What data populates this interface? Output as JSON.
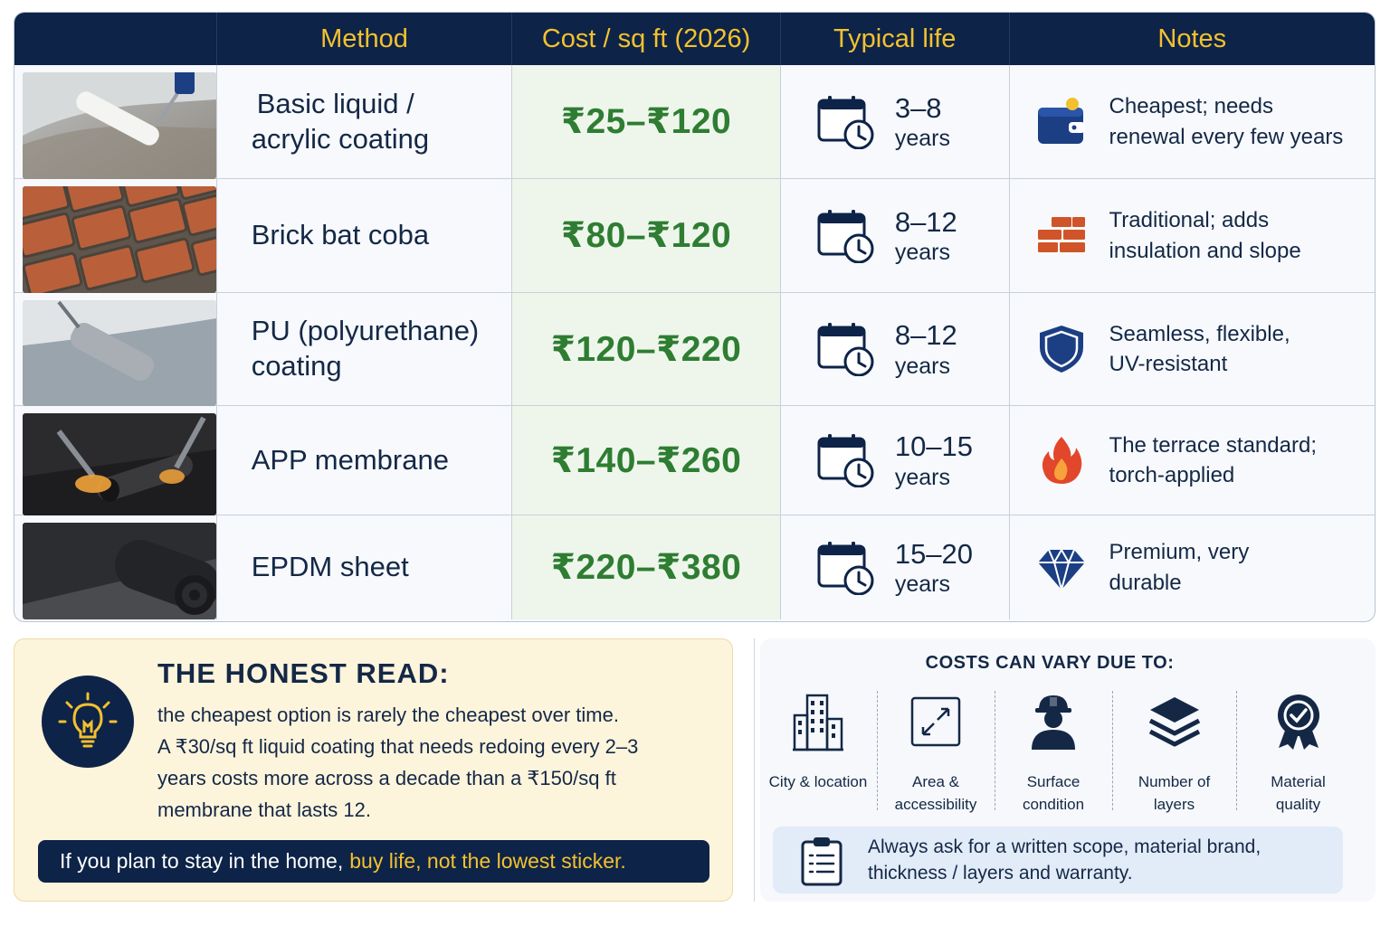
{
  "header": {
    "photo": "",
    "method": "Method",
    "cost": "Cost / sq ft (2026)",
    "life": "Typical life",
    "notes": "Notes"
  },
  "rows": [
    {
      "method_line1": "Basic liquid /",
      "method_line2": "acrylic coating",
      "cost": "₹25–₹120",
      "life_num": "3–8",
      "life_unit": "years",
      "note_line1": "Cheapest; needs",
      "note_line2": "renewal every few years",
      "note_icon": "wallet-icon",
      "photo_desc": "roller-applying-white-coating"
    },
    {
      "method_line1": "Brick bat coba",
      "method_line2": "",
      "cost": "₹80–₹120",
      "life_num": "8–12",
      "life_unit": "years",
      "note_line1": "Traditional; adds",
      "note_line2": "insulation and slope",
      "note_icon": "bricks-icon",
      "photo_desc": "brick-terrace-tiles"
    },
    {
      "method_line1": "PU (polyurethane)",
      "method_line2": "coating",
      "cost": "₹120–₹220",
      "life_num": "8–12",
      "life_unit": "years",
      "note_line1": "Seamless, flexible,",
      "note_line2": "UV-resistant",
      "note_icon": "shield-icon",
      "photo_desc": "roller-applying-grey-coating"
    },
    {
      "method_line1": "APP membrane",
      "method_line2": "",
      "cost": "₹140–₹260",
      "life_num": "10–15",
      "life_unit": "years",
      "note_line1": "The terrace standard;",
      "note_line2": "torch-applied",
      "note_icon": "flame-icon",
      "photo_desc": "torch-applied-membrane"
    },
    {
      "method_line1": "EPDM sheet",
      "method_line2": "",
      "cost": "₹220–₹380",
      "life_num": "15–20",
      "life_unit": "years",
      "note_line1": "Premium, very",
      "note_line2": "durable",
      "note_icon": "diamond-icon",
      "photo_desc": "rubber-sheet-roll"
    }
  ],
  "honest": {
    "title": "THE HONEST READ:",
    "body_line1": "the cheapest option is rarely the cheapest over time.",
    "body_line2": "A ₹30/sq ft liquid coating that needs redoing every 2–3",
    "body_line3": "years costs more across a decade than a ₹150/sq ft",
    "body_line4": "membrane that lasts 12.",
    "cta_prefix": "If you plan to stay in the home,",
    "cta_highlight": "buy life, not the lowest sticker."
  },
  "vary": {
    "title": "COSTS CAN VARY DUE TO:",
    "factors": [
      {
        "line1": "City & location",
        "line2": "",
        "icon": "buildings-icon"
      },
      {
        "line1": "Area &",
        "line2": "accessibility",
        "icon": "expand-icon"
      },
      {
        "line1": "Surface",
        "line2": "condition",
        "icon": "worker-icon"
      },
      {
        "line1": "Number of",
        "line2": "layers",
        "icon": "layers-icon"
      },
      {
        "line1": "Material",
        "line2": "quality",
        "icon": "badge-icon"
      }
    ],
    "advice_line1": "Always ask for a written scope, material brand,",
    "advice_line2": "thickness / layers and warranty.",
    "advice_icon": "clipboard-icon"
  },
  "colors": {
    "navy": "#0d2348",
    "gold": "#f4c12e",
    "green": "#2e7d32",
    "cream": "#fdf4dc",
    "brick": "#d0542a"
  }
}
